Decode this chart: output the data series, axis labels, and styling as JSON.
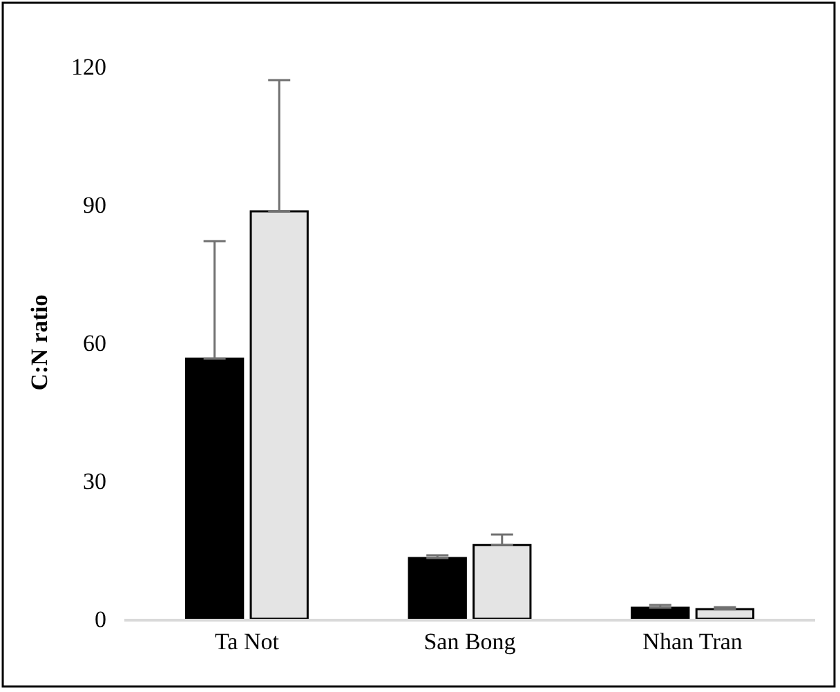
{
  "chart_data": {
    "type": "bar",
    "ylabel": "C:N ratio",
    "categories": [
      "Ta Not",
      "San Bong",
      "Nhan Tran"
    ],
    "series": [
      {
        "color": "#000000",
        "values": [
          56.5,
          13.2,
          2.4
        ],
        "errors": [
          [
            56.5,
            82
          ],
          [
            13.2,
            13.8
          ],
          [
            2.4,
            3
          ]
        ]
      },
      {
        "color": "#e4e4e4",
        "values": [
          88.5,
          16,
          2.1
        ],
        "errors": [
          [
            88.5,
            117
          ],
          [
            16,
            18.3
          ],
          [
            2.1,
            2.5
          ]
        ]
      }
    ],
    "ylim": [
      0,
      120
    ],
    "yticks": [
      0,
      30,
      60,
      90,
      120
    ],
    "legend": false
  }
}
